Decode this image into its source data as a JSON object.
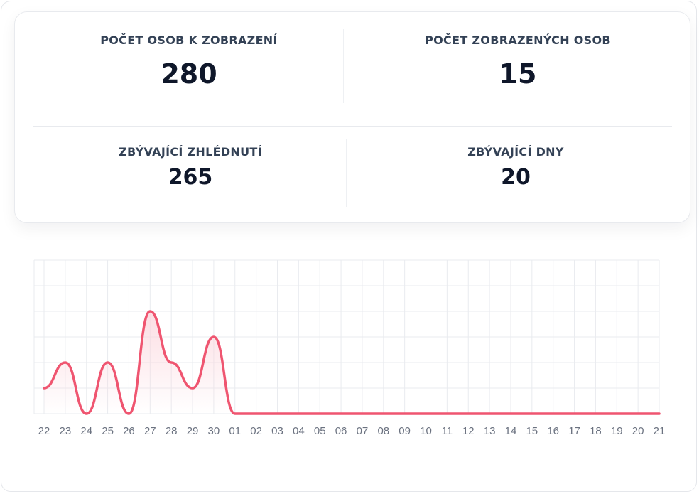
{
  "stats": {
    "total_persons": {
      "label": "POČET OSOB K ZOBRAZENÍ",
      "value": "280"
    },
    "displayed_persons": {
      "label": "POČET ZOBRAZENÝCH OSOB",
      "value": "15"
    },
    "remaining_views": {
      "label": "ZBÝVAJÍCÍ ZHLÉDNUTÍ",
      "value": "265"
    },
    "remaining_days": {
      "label": "ZBÝVAJÍCÍ DNY",
      "value": "20"
    }
  },
  "colors": {
    "line": "#ef5570",
    "fill": "#fbd5dc",
    "grid": "#e9ebef",
    "tick_text": "#6b7280"
  },
  "chart_data": {
    "type": "line",
    "categories": [
      "22",
      "23",
      "24",
      "25",
      "26",
      "27",
      "28",
      "29",
      "30",
      "01",
      "02",
      "03",
      "04",
      "05",
      "06",
      "07",
      "08",
      "09",
      "10",
      "11",
      "12",
      "13",
      "14",
      "15",
      "16",
      "17",
      "18",
      "19",
      "20",
      "21"
    ],
    "series": [
      {
        "values": [
          1,
          2,
          0,
          2,
          0,
          4,
          2,
          1,
          3,
          0,
          0,
          0,
          0,
          0,
          0,
          0,
          0,
          0,
          0,
          0,
          0,
          0,
          0,
          0,
          0,
          0,
          0,
          0,
          0,
          0
        ]
      }
    ],
    "ylim": [
      0,
      6
    ],
    "grid": true,
    "curve": "smooth",
    "area_fill": true
  }
}
